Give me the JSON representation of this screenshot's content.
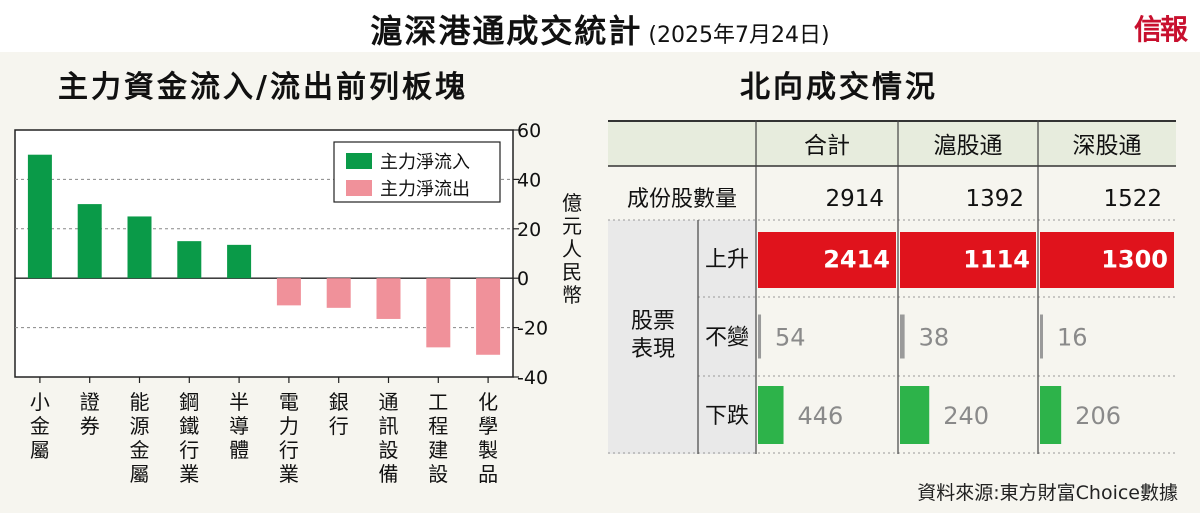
{
  "header": {
    "title": "滬深港通成交統計",
    "date": "(2025年7月24日)",
    "logo": "信報"
  },
  "left_panel": {
    "title": "主力資金流入/流出前列板塊"
  },
  "right_panel": {
    "title": "北向成交情況"
  },
  "colors": {
    "inflow": "#0a9a48",
    "outflow": "#f0919a",
    "rise": "#e0131c",
    "fall": "#2db34a",
    "flat": "#9a9a9a",
    "header_bg": "#e7ecdd",
    "label_bg": "#e9e9e9"
  },
  "chart_data": {
    "type": "bar",
    "title": "主力資金流入/流出前列板塊",
    "ylabel": "億元人民幣",
    "ylim": [
      -40,
      60
    ],
    "yticks": [
      60,
      40,
      20,
      0,
      -20,
      -40
    ],
    "grid": true,
    "legend_position": "top-right",
    "categories": [
      "小金屬",
      "證券",
      "能源金屬",
      "鋼鐵行業",
      "半導體",
      "電力行業",
      "銀行",
      "通訊設備",
      "工程建設",
      "化學製品"
    ],
    "values": [
      50,
      30,
      25,
      15,
      13.5,
      -11,
      -12,
      -16.5,
      -28,
      -31
    ],
    "series": [
      {
        "name": "主力淨流入",
        "color": "#0a9a48"
      },
      {
        "name": "主力淨流出",
        "color": "#f0919a"
      }
    ]
  },
  "table": {
    "columns": [
      "合計",
      "滬股通",
      "深股通"
    ],
    "constituents": {
      "label": "成份股數量",
      "values": [
        "2914",
        "1392",
        "1522"
      ]
    },
    "group_label": [
      "股票",
      "表現"
    ],
    "rows": [
      {
        "label": "上升",
        "kind": "rise",
        "values": [
          "2414",
          "1114",
          "1300"
        ],
        "fractions": [
          1.0,
          1.0,
          1.0
        ]
      },
      {
        "label": "不變",
        "kind": "flat",
        "values": [
          "54",
          "38",
          "16"
        ],
        "fractions": [
          0.022,
          0.034,
          0.012
        ]
      },
      {
        "label": "下跌",
        "kind": "fall",
        "values": [
          "446",
          "240",
          "206"
        ],
        "fractions": [
          0.185,
          0.215,
          0.158
        ]
      }
    ]
  },
  "source": "資料來源:東方財富Choice數據"
}
